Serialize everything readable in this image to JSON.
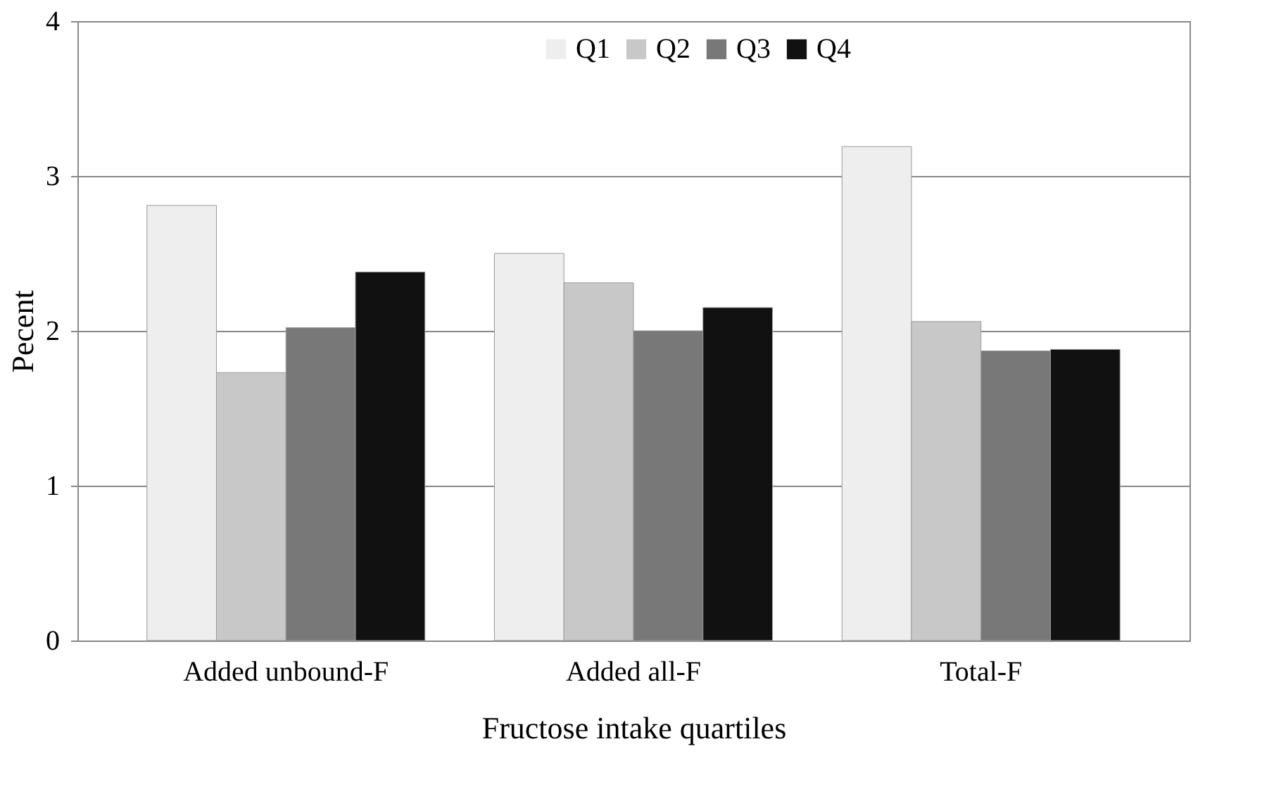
{
  "chart_data": {
    "type": "bar",
    "xlabel": "Fructose intake quartiles",
    "ylabel": "Pecent",
    "categories": [
      "Added unbound-F",
      "Added all-F",
      "Total-F"
    ],
    "series": [
      {
        "name": "Q1",
        "color": "#eeeeee",
        "values": [
          2.81,
          2.5,
          3.19
        ]
      },
      {
        "name": "Q2",
        "color": "#c8c8c8",
        "values": [
          1.73,
          2.31,
          2.06
        ]
      },
      {
        "name": "Q3",
        "color": "#787878",
        "values": [
          2.02,
          2.0,
          1.87
        ]
      },
      {
        "name": "Q4",
        "color": "#111111",
        "values": [
          2.38,
          2.15,
          1.88
        ]
      }
    ],
    "ylim": [
      0,
      4
    ],
    "yticks": [
      0,
      1,
      2,
      3,
      4
    ],
    "grid": "y",
    "legend": "top"
  }
}
